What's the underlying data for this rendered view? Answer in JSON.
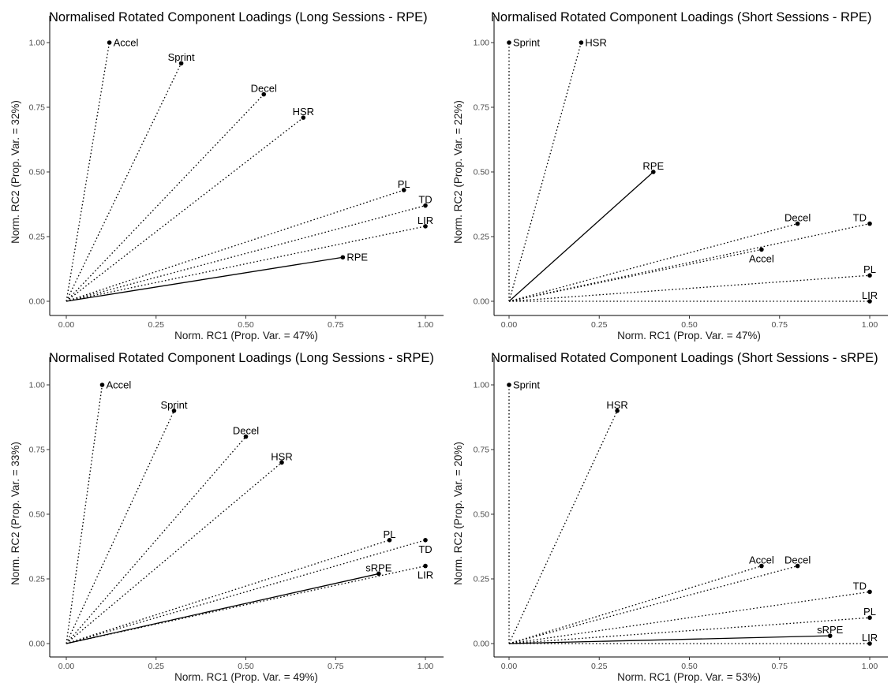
{
  "chart_data": [
    {
      "type": "scatter",
      "title": "Normalised Rotated Component Loadings (Long Sessions - RPE)",
      "xlabel": "Norm. RC1 (Prop. Var. = 47%)",
      "ylabel": "Norm. RC2 (Prop. Var. = 32%)",
      "xlim": [
        0,
        1
      ],
      "ylim": [
        0,
        1
      ],
      "xticks": [
        "0.00",
        "0.25",
        "0.50",
        "0.75",
        "1.00"
      ],
      "yticks": [
        "0.00",
        "0.25",
        "0.50",
        "0.75",
        "1.00"
      ],
      "grid": false,
      "points": [
        {
          "label": "Accel",
          "x": 0.12,
          "y": 1.0,
          "line": "dotted",
          "anchor": "right"
        },
        {
          "label": "Sprint",
          "x": 0.32,
          "y": 0.92,
          "line": "dotted",
          "anchor": "above"
        },
        {
          "label": "Decel",
          "x": 0.55,
          "y": 0.8,
          "line": "dotted",
          "anchor": "above"
        },
        {
          "label": "HSR",
          "x": 0.66,
          "y": 0.71,
          "line": "dotted",
          "anchor": "above"
        },
        {
          "label": "PL",
          "x": 0.94,
          "y": 0.43,
          "line": "dotted",
          "anchor": "above"
        },
        {
          "label": "TD",
          "x": 1.0,
          "y": 0.37,
          "line": "dotted",
          "anchor": "above"
        },
        {
          "label": "LIR",
          "x": 1.0,
          "y": 0.29,
          "line": "dotted",
          "anchor": "above"
        },
        {
          "label": "RPE",
          "x": 0.77,
          "y": 0.17,
          "line": "solid",
          "anchor": "right"
        }
      ]
    },
    {
      "type": "scatter",
      "title": "Normalised Rotated Component Loadings (Short Sessions - RPE)",
      "xlabel": "Norm. RC1 (Prop. Var. = 47%)",
      "ylabel": "Norm. RC2 (Prop. Var. = 22%)",
      "xlim": [
        0,
        1
      ],
      "ylim": [
        0,
        1
      ],
      "xticks": [
        "0.00",
        "0.25",
        "0.50",
        "0.75",
        "1.00"
      ],
      "yticks": [
        "0.00",
        "0.25",
        "0.50",
        "0.75",
        "1.00"
      ],
      "grid": false,
      "points": [
        {
          "label": "Sprint",
          "x": 0.0,
          "y": 1.0,
          "line": "dotted",
          "anchor": "right"
        },
        {
          "label": "HSR",
          "x": 0.2,
          "y": 1.0,
          "line": "dotted",
          "anchor": "right"
        },
        {
          "label": "RPE",
          "x": 0.4,
          "y": 0.5,
          "line": "solid",
          "anchor": "above"
        },
        {
          "label": "Decel",
          "x": 0.8,
          "y": 0.3,
          "line": "dotted",
          "anchor": "above"
        },
        {
          "label": "TD",
          "x": 1.0,
          "y": 0.3,
          "line": "dotted",
          "anchor": "left-above"
        },
        {
          "label": "Accel",
          "x": 0.7,
          "y": 0.2,
          "line": "dotted",
          "anchor": "below"
        },
        {
          "label": "PL",
          "x": 1.0,
          "y": 0.1,
          "line": "dotted",
          "anchor": "above"
        },
        {
          "label": "LIR",
          "x": 1.0,
          "y": 0.0,
          "line": "dotted",
          "anchor": "above"
        }
      ]
    },
    {
      "type": "scatter",
      "title": "Normalised Rotated Component Loadings (Long Sessions - sRPE)",
      "xlabel": "Norm. RC1 (Prop. Var. = 49%)",
      "ylabel": "Norm. RC2 (Prop. Var. = 33%)",
      "xlim": [
        0,
        1
      ],
      "ylim": [
        0,
        1
      ],
      "xticks": [
        "0.00",
        "0.25",
        "0.50",
        "0.75",
        "1.00"
      ],
      "yticks": [
        "0.00",
        "0.25",
        "0.50",
        "0.75",
        "1.00"
      ],
      "grid": false,
      "points": [
        {
          "label": "Accel",
          "x": 0.1,
          "y": 1.0,
          "line": "dotted",
          "anchor": "right"
        },
        {
          "label": "Sprint",
          "x": 0.3,
          "y": 0.9,
          "line": "dotted",
          "anchor": "above"
        },
        {
          "label": "Decel",
          "x": 0.5,
          "y": 0.8,
          "line": "dotted",
          "anchor": "above"
        },
        {
          "label": "HSR",
          "x": 0.6,
          "y": 0.7,
          "line": "dotted",
          "anchor": "above"
        },
        {
          "label": "PL",
          "x": 0.9,
          "y": 0.4,
          "line": "dotted",
          "anchor": "above"
        },
        {
          "label": "TD",
          "x": 1.0,
          "y": 0.4,
          "line": "dotted",
          "anchor": "below"
        },
        {
          "label": "LIR",
          "x": 1.0,
          "y": 0.3,
          "line": "dotted",
          "anchor": "below"
        },
        {
          "label": "sRPE",
          "x": 0.87,
          "y": 0.27,
          "line": "solid",
          "anchor": "above"
        }
      ]
    },
    {
      "type": "scatter",
      "title": "Normalised Rotated Component Loadings (Short Sessions - sRPE)",
      "xlabel": "Norm. RC1 (Prop. Var. = 53%)",
      "ylabel": "Norm. RC2 (Prop. Var. = 20%)",
      "xlim": [
        0,
        1
      ],
      "ylim": [
        0,
        1
      ],
      "xticks": [
        "0.00",
        "0.25",
        "0.50",
        "0.75",
        "1.00"
      ],
      "yticks": [
        "0.00",
        "0.25",
        "0.50",
        "0.75",
        "1.00"
      ],
      "grid": false,
      "points": [
        {
          "label": "Sprint",
          "x": 0.0,
          "y": 1.0,
          "line": "dotted",
          "anchor": "right"
        },
        {
          "label": "HSR",
          "x": 0.3,
          "y": 0.9,
          "line": "dotted",
          "anchor": "above"
        },
        {
          "label": "Accel",
          "x": 0.7,
          "y": 0.3,
          "line": "dotted",
          "anchor": "above"
        },
        {
          "label": "Decel",
          "x": 0.8,
          "y": 0.3,
          "line": "dotted",
          "anchor": "above"
        },
        {
          "label": "TD",
          "x": 1.0,
          "y": 0.2,
          "line": "dotted",
          "anchor": "left-above"
        },
        {
          "label": "PL",
          "x": 1.0,
          "y": 0.1,
          "line": "dotted",
          "anchor": "above"
        },
        {
          "label": "sRPE",
          "x": 0.89,
          "y": 0.03,
          "line": "solid",
          "anchor": "above"
        },
        {
          "label": "LIR",
          "x": 1.0,
          "y": 0.0,
          "line": "dotted",
          "anchor": "above"
        }
      ]
    }
  ]
}
